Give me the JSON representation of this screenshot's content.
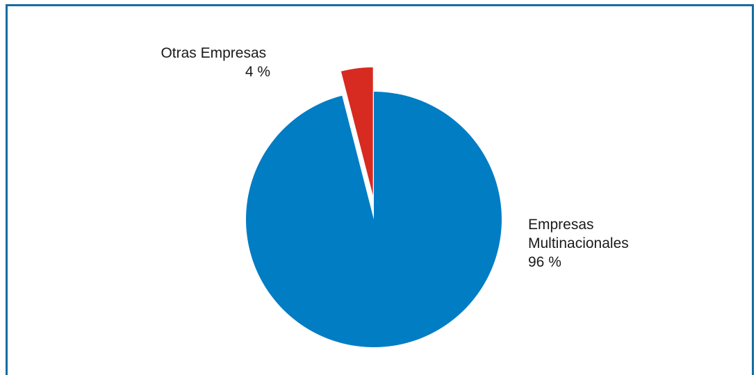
{
  "chart_data": {
    "type": "pie",
    "title": "",
    "categories": [
      "Empresas Multinacionales",
      "Otras Empresas"
    ],
    "values": [
      96,
      4
    ],
    "colors": [
      "#017dc4",
      "#d72a20"
    ],
    "exploded": [
      false,
      true
    ],
    "labels": [
      {
        "lines": [
          "Empresas",
          "Multinacionales",
          "96 %"
        ],
        "placement": "right"
      },
      {
        "lines": [
          "Otras Empresas",
          "4 %"
        ],
        "placement": "top-left"
      }
    ]
  }
}
